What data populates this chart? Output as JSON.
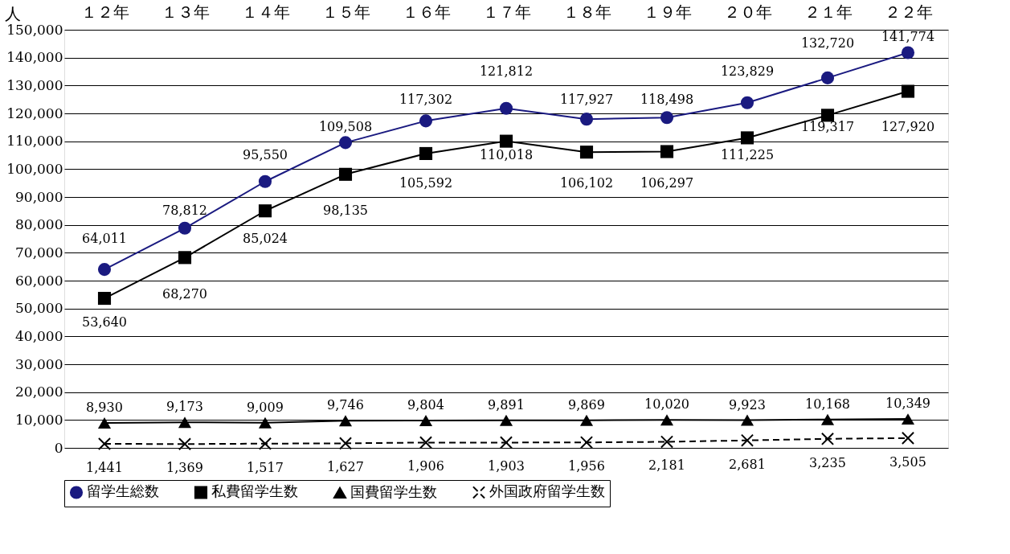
{
  "chart_data": {
    "type": "line",
    "ylabel": "人",
    "categories": [
      "１２年",
      "１３年",
      "１４年",
      "１５年",
      "１６年",
      "１７年",
      "１８年",
      "１９年",
      "２０年",
      "２１年",
      "２２年"
    ],
    "ylim": [
      0,
      150000
    ],
    "yticks": [
      0,
      {
        "value": 10000,
        "label": "10,000"
      },
      {
        "value": 20000,
        "label": "20,000"
      },
      {
        "value": 30000,
        "label": "30,000"
      },
      {
        "value": 40000,
        "label": "40,000"
      },
      {
        "value": 50000,
        "label": "50,000"
      },
      {
        "value": 60000,
        "label": "60,000"
      },
      {
        "value": 70000,
        "label": "70,000"
      },
      {
        "value": 80000,
        "label": "80,000"
      },
      {
        "value": 90000,
        "label": "90,000"
      },
      {
        "value": 100000,
        "label": "100,000"
      },
      {
        "value": 110000,
        "label": "110,000"
      },
      {
        "value": 120000,
        "label": "120,000"
      },
      {
        "value": 130000,
        "label": "130,000"
      },
      {
        "value": 140000,
        "label": "140,000"
      },
      {
        "value": 150000,
        "label": "150,000"
      }
    ],
    "grid": "y",
    "legend": "bottom",
    "series": [
      {
        "name": "留学生総数",
        "color": "#1a1a80",
        "marker": "circle",
        "line_style": "solid",
        "values": [
          64011,
          78812,
          95550,
          109508,
          117302,
          121812,
          117927,
          118498,
          123829,
          132720,
          141774
        ],
        "value_labels": [
          "64,011",
          "78,812",
          "95,550",
          "109,508",
          "117,302",
          "121,812",
          "117,927",
          "118,498",
          "123,829",
          "132,720",
          "141,774"
        ]
      },
      {
        "name": "私費留学生数",
        "color": "#000000",
        "marker": "square",
        "line_style": "solid",
        "values": [
          53640,
          68270,
          85024,
          98135,
          105592,
          110018,
          106102,
          106297,
          111225,
          119317,
          127920
        ],
        "value_labels": [
          "53,640",
          "68,270",
          "85,024",
          "98,135",
          "105,592",
          "110,018",
          "106,102",
          "106,297",
          "111,225",
          "119,317",
          "127,920"
        ]
      },
      {
        "name": "国費留学生数",
        "color": "#000000",
        "marker": "triangle",
        "line_style": "solid",
        "values": [
          8930,
          9173,
          9009,
          9746,
          9804,
          9891,
          9869,
          10020,
          9923,
          10168,
          10349
        ],
        "value_labels": [
          "8,930",
          "9,173",
          "9,009",
          "9,746",
          "9,804",
          "9,891",
          "9,869",
          "10,020",
          "9,923",
          "10,168",
          "10,349"
        ]
      },
      {
        "name": "外国政府留学生数",
        "color": "#000000",
        "marker": "cross",
        "line_style": "dashed",
        "values": [
          1441,
          1369,
          1517,
          1627,
          1906,
          1903,
          1956,
          2181,
          2681,
          3235,
          3505
        ],
        "value_labels": [
          "1,441",
          "1,369",
          "1,517",
          "1,627",
          "1,906",
          "1,903",
          "1,956",
          "2,181",
          "2,681",
          "3,235",
          "3,505"
        ]
      }
    ]
  }
}
